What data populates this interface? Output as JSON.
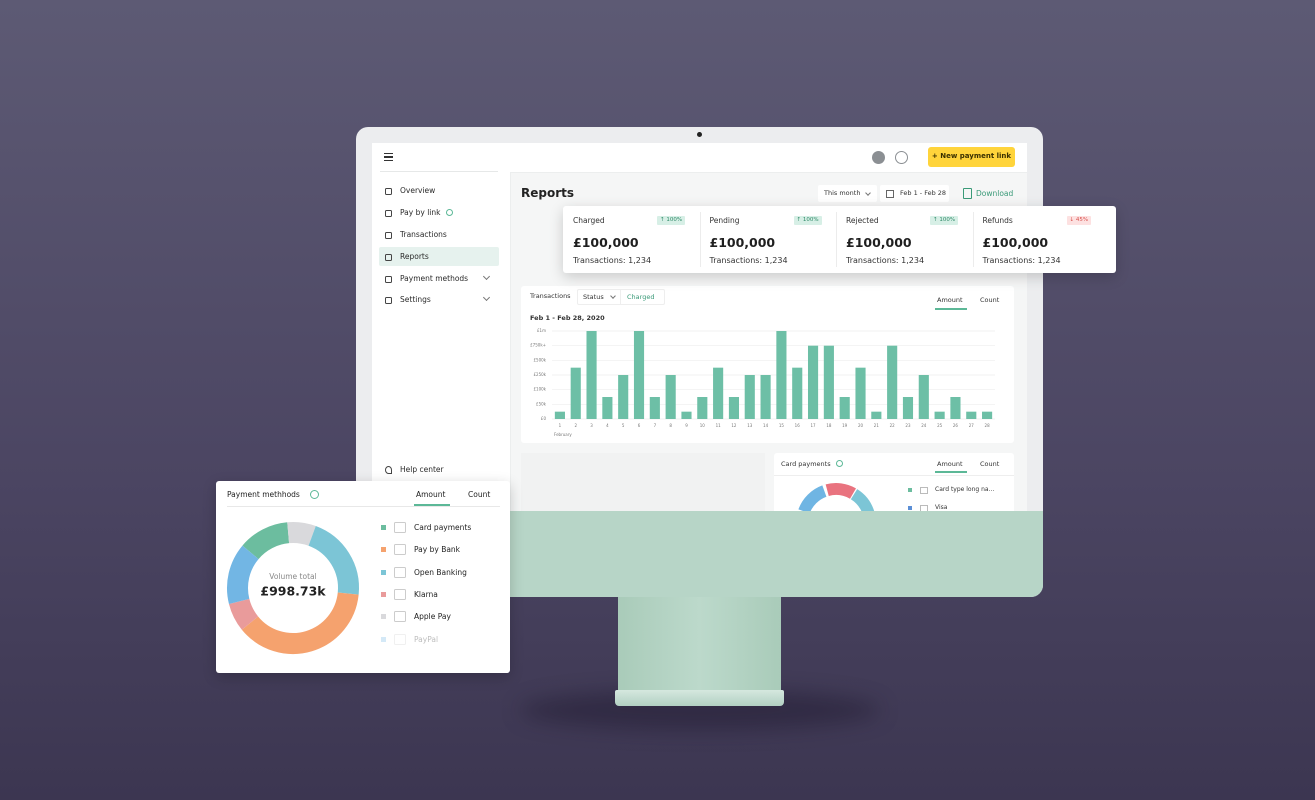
{
  "header": {
    "button": "+ New payment link"
  },
  "sidebar": {
    "items": [
      {
        "label": "Overview"
      },
      {
        "label": "Pay by link",
        "info": true
      },
      {
        "label": "Transactions"
      },
      {
        "label": "Reports",
        "active": true
      },
      {
        "label": "Payment methods",
        "expandable": true
      },
      {
        "label": "Settings",
        "expandable": true
      }
    ],
    "help": "Help center"
  },
  "reports": {
    "title": "Reports",
    "period": "This month",
    "range": "Feb 1 - Feb 28",
    "download": "Download"
  },
  "stats": [
    {
      "label": "Charged",
      "change": "↑ 100%",
      "trend": "up",
      "amount": "£100,000",
      "transactions": "Transactions: 1,234"
    },
    {
      "label": "Pending",
      "change": "↑ 100%",
      "trend": "up",
      "amount": "£100,000",
      "transactions": "Transactions: 1,234"
    },
    {
      "label": "Rejected",
      "change": "↑ 100%",
      "trend": "up",
      "amount": "£100,000",
      "transactions": "Transactions: 1,234"
    },
    {
      "label": "Refunds",
      "change": "↓ 45%",
      "trend": "down",
      "amount": "£100,000",
      "transactions": "Transactions: 1,234"
    }
  ],
  "chart_data": {
    "type": "bar",
    "title": "Transactions",
    "filter": "Status",
    "filter_value": "Charged",
    "options": [
      "Amount",
      "Count"
    ],
    "subtitle": "Feb 1 - Feb 28, 2020",
    "x_label": "February",
    "categories": [
      "1",
      "2",
      "3",
      "4",
      "5",
      "6",
      "7",
      "8",
      "9",
      "10",
      "11",
      "12",
      "13",
      "14",
      "15",
      "16",
      "17",
      "18",
      "19",
      "20",
      "21",
      "22",
      "23",
      "24",
      "25",
      "26",
      "27",
      "28"
    ],
    "values": [
      0.5,
      3.5,
      6,
      1.5,
      3,
      6,
      1.5,
      3,
      0.5,
      1.5,
      3.5,
      1.5,
      3,
      3,
      6,
      3.5,
      5,
      5,
      1.5,
      3.5,
      0.5,
      5,
      1.5,
      3,
      0.5,
      1.5,
      0.5,
      0.5
    ],
    "color": "#6dbfa6",
    "ylim": [
      0,
      6
    ],
    "yticks": [
      {
        "value": 0,
        "label": "£0"
      },
      {
        "value": 1,
        "label": "£50k"
      },
      {
        "value": 2,
        "label": "£100k"
      },
      {
        "value": 3,
        "label": "£250k"
      },
      {
        "value": 4,
        "label": "£500k"
      },
      {
        "value": 5,
        "label": "£750k+"
      },
      {
        "value": 6,
        "label": "£1m"
      }
    ],
    "grid": true
  },
  "card_payments": {
    "title": "Card payments",
    "options": [
      "Amount",
      "Count"
    ],
    "legend": [
      "Card type long na...",
      "Visa"
    ]
  },
  "payment_methods": {
    "title": "Payment methhods",
    "options": [
      "Amount",
      "Count"
    ],
    "center_label": "Volume total",
    "center_value": "£998.73k",
    "methods": [
      {
        "name": "Card  payments",
        "color": "#6cbd9f",
        "share": 12.5
      },
      {
        "name": "Pay by Bank",
        "color": "#f5a26e",
        "share": 37.5
      },
      {
        "name": "Open Banking",
        "color": "#7cc5d6",
        "share": 21
      },
      {
        "name": "Klarna",
        "color": "#e99b9b",
        "share": 7
      },
      {
        "name": "Apple Pay",
        "color": "#d9d9dc",
        "share": 7
      },
      {
        "name": "PayPal",
        "color": "#72b6e4",
        "share": 15,
        "faded": true
      }
    ]
  }
}
